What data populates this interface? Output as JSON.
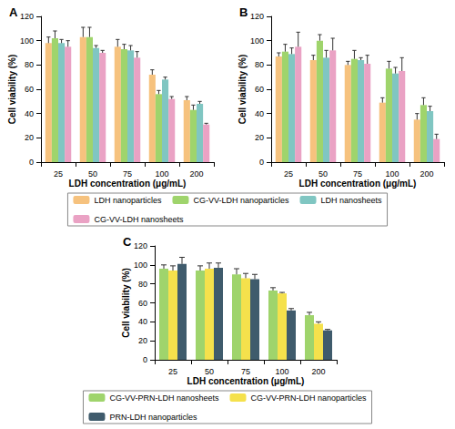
{
  "chart_data": [
    {
      "type": "bar",
      "title": "A",
      "x_label": "LDH concentration (μg/mL)",
      "y_label": "Cell viability (%)",
      "categories": [
        "25",
        "50",
        "75",
        "100",
        "200"
      ],
      "ylim": [
        0,
        120
      ],
      "yticks": [
        0,
        20,
        40,
        60,
        80,
        100,
        120
      ],
      "grid": false,
      "legend": "bottom",
      "series": [
        {
          "name": "LDH nanoparticles",
          "color": "#f6c27e",
          "values": [
            98,
            103,
            95,
            72,
            51
          ],
          "errors": [
            5,
            8,
            6,
            4,
            3
          ]
        },
        {
          "name": "CG-VV-LDH nanoparticles",
          "color": "#9fd46c",
          "values": [
            102,
            103,
            93,
            56,
            43
          ],
          "errors": [
            6,
            8,
            4,
            3,
            4
          ]
        },
        {
          "name": "LDH nanosheets",
          "color": "#80c6c2",
          "values": [
            98,
            94,
            92,
            68,
            48
          ],
          "errors": [
            3,
            2,
            4,
            2,
            2
          ]
        },
        {
          "name": "CG-VV-LDH nanosheets",
          "color": "#eaa2c4",
          "values": [
            95,
            90,
            86,
            52,
            31
          ],
          "errors": [
            5,
            2,
            5,
            2,
            1
          ]
        }
      ]
    },
    {
      "type": "bar",
      "title": "B",
      "x_label": "LDH concentration (μg/mL)",
      "y_label": "Cell viability (%)",
      "categories": [
        "25",
        "50",
        "75",
        "100",
        "200"
      ],
      "ylim": [
        0,
        120
      ],
      "yticks": [
        0,
        20,
        40,
        60,
        80,
        100,
        120
      ],
      "grid": false,
      "series": [
        {
          "name": "LDH nanoparticles",
          "color": "#f6c27e",
          "values": [
            87,
            84,
            80,
            49,
            35
          ],
          "errors": [
            3,
            4,
            3,
            4,
            5
          ]
        },
        {
          "name": "CG-VV-LDH nanoparticles",
          "color": "#9fd46c",
          "values": [
            91,
            100,
            85,
            77,
            47
          ],
          "errors": [
            6,
            5,
            7,
            6,
            6
          ]
        },
        {
          "name": "LDH nanosheets",
          "color": "#80c6c2",
          "values": [
            89,
            86,
            84,
            73,
            42
          ],
          "errors": [
            5,
            6,
            2,
            5,
            4
          ]
        },
        {
          "name": "CG-VV-LDH nanosheets",
          "color": "#eaa2c4",
          "values": [
            95,
            92,
            81,
            75,
            19
          ],
          "errors": [
            12,
            10,
            7,
            11,
            4
          ]
        }
      ]
    },
    {
      "type": "bar",
      "title": "C",
      "x_label": "LDH concentration (μg/mL)",
      "y_label": "Cell viability (%)",
      "categories": [
        "25",
        "50",
        "75",
        "100",
        "200"
      ],
      "ylim": [
        0,
        120
      ],
      "yticks": [
        0,
        20,
        40,
        60,
        80,
        100,
        120
      ],
      "grid": false,
      "legend": "bottom",
      "series": [
        {
          "name": "CG-VV-PRN-LDH nanosheets",
          "color": "#9fd46c",
          "values": [
            96,
            94,
            90,
            73,
            47
          ],
          "errors": [
            4,
            5,
            6,
            3,
            3
          ]
        },
        {
          "name": "CG-VV-PRN-LDH nanoparticles",
          "color": "#f5e14c",
          "values": [
            94,
            96,
            86,
            70,
            38
          ],
          "errors": [
            5,
            6,
            5,
            1,
            2
          ]
        },
        {
          "name": "PRN-LDH nanoparticles",
          "color": "#3f5b6c",
          "values": [
            101,
            97,
            85,
            52,
            31
          ],
          "errors": [
            7,
            5,
            5,
            2,
            1
          ]
        }
      ]
    }
  ]
}
